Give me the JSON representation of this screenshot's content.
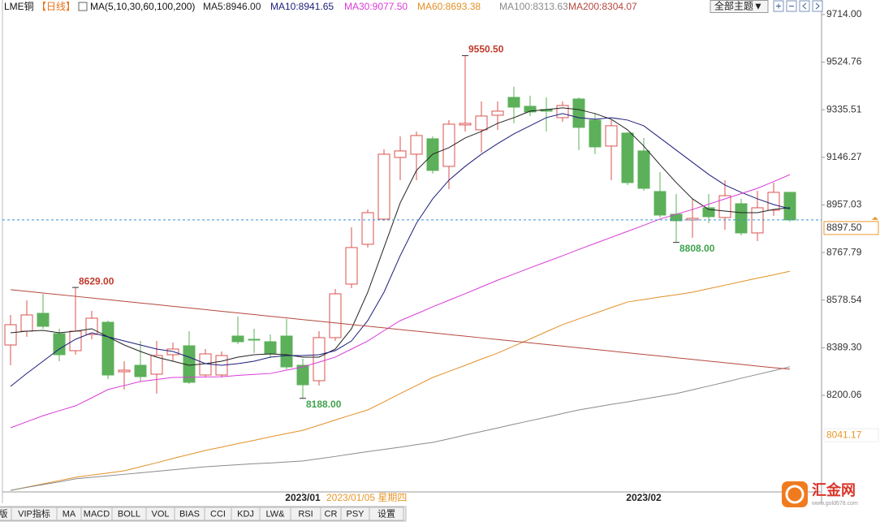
{
  "chart_data": {
    "type": "candlestick",
    "title": "LME铜",
    "subtitle": "【日线】",
    "indicator": "MA(5,10,30,60,100,200)",
    "categories": [
      null,
      null,
      null,
      null,
      null,
      null,
      null,
      null,
      null,
      null,
      null,
      null,
      null,
      null,
      null,
      null,
      null,
      null,
      "2023/01",
      null,
      null,
      null,
      null,
      null,
      null,
      null,
      null,
      null,
      null,
      null,
      null,
      null,
      null,
      null,
      null,
      null,
      null,
      null,
      null,
      "2023/02",
      null,
      null,
      null,
      null,
      null,
      null,
      null,
      null,
      null
    ],
    "open": [
      8400.2,
      8455.1,
      8526.1,
      8445.4,
      8377.6,
      8442.2,
      8490.6,
      8293.7,
      8319.5,
      8284.1,
      8361.5,
      8397.0,
      8280.8,
      8280.8,
      8435.7,
      8422.8,
      8413.1,
      8435.7,
      8319.5,
      8258.1,
      8429.3,
      8642.3,
      8800.5,
      8900.5,
      9145.9,
      9158.8,
      9220.1,
      9110.4,
      9275.0,
      9255.6,
      9313.7,
      9384.7,
      9349.2,
      9336.3,
      9304.0,
      9378.3,
      9294.4,
      9191.1,
      9242.7,
      9171.7,
      9010.3,
      8919.9,
      8897.3,
      8945.7,
      8907.0,
      8961.9,
      8845.7,
      8936.0,
      9007.1
    ],
    "high": [
      8519.6,
      8577.7,
      8603.6,
      8464.8,
      8629,
      8535.8,
      8497.0,
      8335.6,
      8416.3,
      8416.3,
      8409.9,
      8455.1,
      8384.1,
      8374.4,
      8513.2,
      8464.8,
      8442.2,
      8503.5,
      8345.3,
      8455.1,
      8623.0,
      8868.3,
      8939.2,
      9178.2,
      9229.8,
      9249.1,
      9229.8,
      9294.4,
      9550.5,
      9368.6,
      9368.6,
      9426.7,
      9391.2,
      9384.7,
      9368.6,
      9384.7,
      9320.2,
      9294.4,
      9246.0,
      9223.3,
      9087.8,
      9000.4,
      8981.2,
      9000.4,
      9055.5,
      8981.2,
      9013.5,
      9045.8,
      9007.1
    ],
    "low": [
      8319.5,
      8432.5,
      8464.8,
      8335.6,
      8361.5,
      8422.8,
      8264.6,
      8222.7,
      8254.9,
      8206.5,
      8335.6,
      8245.3,
      8271.0,
      8271.0,
      8403.5,
      8367.9,
      8348.6,
      8303.4,
      8188,
      8238.8,
      8416.3,
      8626.1,
      8787.6,
      8894.1,
      9055.5,
      9055.5,
      9081.4,
      9020.0,
      9249.1,
      9165.3,
      9255.6,
      9281.4,
      9310.5,
      9249.1,
      9287.9,
      9174.9,
      9158.8,
      9055.5,
      9036.1,
      9013.5,
      8907.0,
      8808,
      8826.3,
      8884.4,
      8858.6,
      8836.0,
      8813.4,
      8913.4,
      8890
    ],
    "close": [
      8480.9,
      8519.6,
      8474.4,
      8361.5,
      8455.1,
      8506.7,
      8280.8,
      8300.1,
      8274.3,
      8358.3,
      8384.1,
      8251.7,
      8364.7,
      8358.3,
      8413.1,
      8419.6,
      8364.7,
      8313.0,
      8242.0,
      8429.3,
      8603.6,
      8787.6,
      8926.3,
      9158.8,
      9171.7,
      9233.0,
      9094.2,
      9278.2,
      9281.4,
      9310.5,
      9329.9,
      9345.9,
      9326.6,
      9329.9,
      9352.4,
      9265.3,
      9187.8,
      9271.8,
      9045.8,
      9023.2,
      8916.7,
      8894.1,
      8903.8,
      8910.2,
      8993.9,
      8845.7,
      8945.7,
      9007.1,
      8897.5
    ],
    "up_color": "#d9534f",
    "down_color": "#5cb05a",
    "series": [
      {
        "name": "MA5:8946.00",
        "color": "#222222",
        "values": [
          8448.6,
          8455.1,
          8458.3,
          8448.6,
          8455.1,
          8464.8,
          8432.5,
          8400.2,
          8374.4,
          8351.8,
          8335.6,
          8319.5,
          8326.0,
          8335.6,
          8351.8,
          8361.5,
          8364.7,
          8361.5,
          8351.8,
          8351.8,
          8384.1,
          8464.8,
          8610.0,
          8787.6,
          8965.1,
          9094.2,
          9158.8,
          9184.6,
          9223.3,
          9249.1,
          9281.4,
          9304.0,
          9329.9,
          9336.3,
          9342.8,
          9336.3,
          9320.2,
          9297.6,
          9255.6,
          9191.1,
          9116.8,
          9045.8,
          8981.2,
          8939.2,
          8932.7,
          8926.3,
          8926.3,
          8939.2,
          8946.0
        ]
      },
      {
        "name": "MA10:8941.65",
        "color": "#1c1c7a",
        "values": [
          8235.6,
          8287.2,
          8335.6,
          8384.1,
          8422.8,
          8448.6,
          8432.5,
          8416.3,
          8400.2,
          8384.1,
          8374.4,
          8351.8,
          8326.0,
          8319.5,
          8326.0,
          8335.6,
          8351.8,
          8358.3,
          8358.3,
          8361.5,
          8377.6,
          8416.3,
          8497.0,
          8610.0,
          8755.3,
          8884.4,
          8981.2,
          9055.5,
          9110.4,
          9158.8,
          9200.8,
          9239.5,
          9271.8,
          9304.0,
          9320.2,
          9304.0,
          9297.6,
          9304.0,
          9294.4,
          9271.8,
          9223.3,
          9174.9,
          9126.5,
          9078.1,
          9036.1,
          9007.1,
          8981.2,
          8958.6,
          8941.65
        ]
      },
      {
        "name": "MA30:9077.50",
        "color": "#d93bd9",
        "values": [
          8071,
          8095,
          8119,
          8139,
          8158,
          8190,
          8223,
          8239,
          8255,
          8263,
          8271,
          8272,
          8273,
          8274,
          8279,
          8283,
          8287,
          8300,
          8313,
          8332,
          8352,
          8384,
          8416,
          8457,
          8497,
          8524,
          8552,
          8578,
          8604,
          8631,
          8658,
          8682,
          8707,
          8731,
          8755,
          8780,
          8804,
          8828,
          8852,
          8876,
          8901,
          8920,
          8939,
          8960,
          8981,
          9002,
          9023,
          9050,
          9077.5
        ]
      },
      {
        "name": "MA60:8693.38",
        "color": "#e39026",
        "values": [
          7822,
          7835,
          7848,
          7861,
          7874,
          7883,
          7891,
          7900,
          7916,
          7932,
          7949,
          7965,
          7981,
          7994,
          8008,
          8021,
          8035,
          8048,
          8061,
          8081,
          8102,
          8122,
          8142,
          8174,
          8207,
          8239,
          8271,
          8295,
          8319,
          8344,
          8368,
          8396,
          8424,
          8453,
          8481,
          8504,
          8526,
          8549,
          8571,
          8581,
          8591,
          8600,
          8610,
          8624,
          8638,
          8652,
          8666,
          8679,
          8693.38
        ]
      },
      {
        "name": "MA100:8313.63",
        "color": "#8a8a8a",
        "values": [
          7822,
          7834,
          7845,
          7856,
          7868,
          7874,
          7880,
          7886,
          7892,
          7898,
          7904,
          7910,
          7916,
          7920,
          7924,
          7928,
          7931,
          7935,
          7939,
          7948,
          7957,
          7967,
          7976,
          7985,
          7994,
          8004,
          8013,
          8027,
          8042,
          8056,
          8070,
          8085,
          8099,
          8113,
          8128,
          8142,
          8153,
          8164,
          8174,
          8185,
          8196,
          8207,
          8222,
          8237,
          8252,
          8268,
          8283,
          8298,
          8313.63
        ]
      },
      {
        "name": "MA200:8304.07",
        "color": "#b5483f",
        "values": [
          8620,
          8613.4,
          8606.8,
          8600.2,
          8593.6,
          8587,
          8580.4,
          8573.8,
          8567.2,
          8560.6,
          8554,
          8547.4,
          8540.8,
          8534.2,
          8527.6,
          8521,
          8514.4,
          8507.8,
          8501.2,
          8494.6,
          8488,
          8481.4,
          8474.8,
          8468.2,
          8461.6,
          8455,
          8448.4,
          8441.8,
          8435.2,
          8428.6,
          8422,
          8415.4,
          8408.8,
          8402.2,
          8395.6,
          8389,
          8382.4,
          8375.8,
          8369.2,
          8362.6,
          8356,
          8349.4,
          8342.8,
          8336.2,
          8329.6,
          8323,
          8316.4,
          8309.8,
          8304.07
        ]
      }
    ],
    "ylim": [
      7816,
      9746
    ],
    "yticks": [
      {
        "value": 9714,
        "label": "9714.00"
      },
      {
        "value": 9524.76,
        "label": "9524.76"
      },
      {
        "value": 9335.51,
        "label": "9335.51"
      },
      {
        "value": 9146.27,
        "label": "9146.27"
      },
      {
        "value": 8957.03,
        "label": "8957.03"
      },
      {
        "value": 8767.79,
        "label": "8767.79"
      },
      {
        "value": 8578.54,
        "label": "8578.54"
      },
      {
        "value": 8389.3,
        "label": "8389.30"
      },
      {
        "value": 8200.06,
        "label": "8200.06"
      }
    ],
    "grid": false,
    "annotations": [
      {
        "index": 4,
        "field": "high",
        "label": "8629.00"
      },
      {
        "index": 28,
        "field": "high",
        "label": "9550.50"
      },
      {
        "index": 18,
        "field": "low",
        "label": "8188.00"
      },
      {
        "index": 41,
        "field": "low",
        "label": "8808.00"
      }
    ],
    "last_price_label": "8897.50",
    "cursor_price": {
      "value": 8041.17,
      "label": "8041.17"
    },
    "cursor_date": "2023/01/05 星期四"
  },
  "toolbar": {
    "theme_button": "全部主题▼"
  },
  "tabs": [
    "版",
    "VIP指标",
    "MA",
    "MACD",
    "BOLL",
    "VOL",
    "BIAS",
    "CCI",
    "KDJ",
    "LW&",
    "RSI",
    "CR",
    "PSY",
    "设置"
  ],
  "logo": {
    "name": "汇金网",
    "url": "www.gold678.com"
  }
}
